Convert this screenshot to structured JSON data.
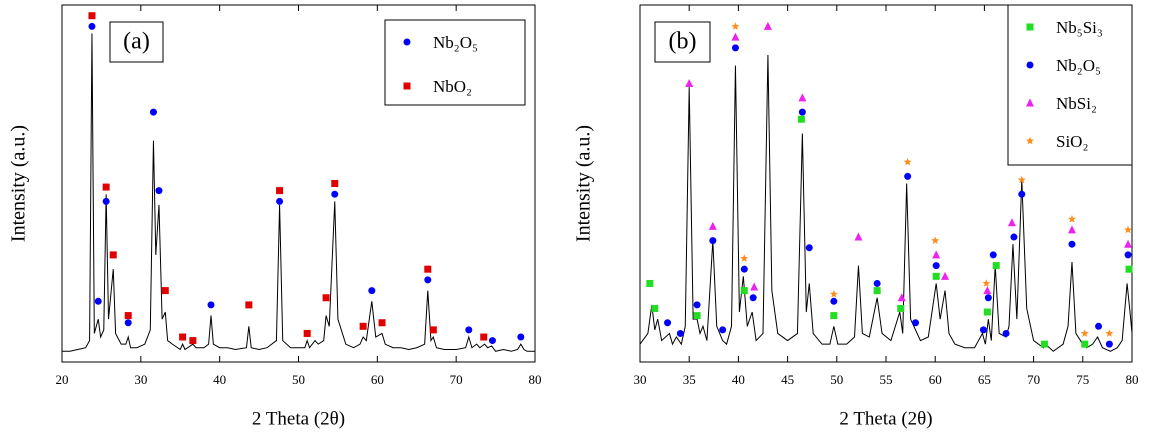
{
  "chart_data": [
    {
      "type": "line",
      "label": "(a)",
      "xlabel": "2 Theta (2θ)",
      "ylabel": "Intensity (a.u.)",
      "xlim": [
        20,
        80
      ],
      "xticks": [
        20,
        30,
        40,
        50,
        60,
        70,
        80
      ],
      "ylim": [
        0,
        100
      ],
      "color": "#000000",
      "legend": "upper right",
      "x": [
        20,
        21,
        22,
        23,
        23.5,
        23.8,
        24.1,
        24.6,
        24.9,
        25.3,
        25.6,
        25.9,
        26.5,
        26.8,
        27.5,
        28.1,
        28.4,
        28.7,
        29.5,
        30.5,
        31.2,
        31.6,
        31.9,
        32.3,
        32.7,
        33.1,
        33.4,
        34,
        35,
        35.3,
        35.6,
        36.6,
        37,
        38,
        38.6,
        38.9,
        39.2,
        40,
        41,
        42,
        43.4,
        43.7,
        44,
        45,
        46,
        47.2,
        47.6,
        48,
        49,
        50,
        50.8,
        51.1,
        51.4,
        52.1,
        52.5,
        53.2,
        53.5,
        53.9,
        54.6,
        55,
        56,
        57,
        57.8,
        58.2,
        58.6,
        59.3,
        59.8,
        60.6,
        61,
        62,
        63,
        64,
        65,
        66,
        66.4,
        66.8,
        67.1,
        67.5,
        68.5,
        70,
        71.2,
        71.6,
        72,
        72.6,
        73,
        73.6,
        74,
        74.5,
        75,
        76,
        77,
        77.8,
        78.2,
        78.6,
        79,
        80
      ],
      "values": [
        3,
        3,
        3.5,
        4,
        6,
        92,
        8,
        12,
        7,
        9,
        47,
        12,
        26,
        8,
        5,
        5,
        7,
        4,
        4,
        5,
        9,
        62,
        30,
        44,
        12,
        14,
        6,
        5,
        3.5,
        5,
        3.5,
        5,
        4,
        4,
        5,
        13,
        5,
        4,
        4,
        3.5,
        4,
        10,
        4,
        3.5,
        4,
        6,
        44,
        6,
        4,
        4,
        4,
        6,
        4,
        6,
        5,
        6,
        13,
        10,
        45,
        12,
        5,
        4,
        5,
        7,
        6,
        17,
        7,
        8,
        5,
        4,
        4,
        3.5,
        4,
        5,
        20,
        6,
        7,
        4,
        3.5,
        3.5,
        4,
        7,
        4,
        5,
        4,
        5,
        4,
        4.5,
        3,
        3.5,
        3,
        3.5,
        5,
        3.5,
        3,
        3
      ],
      "series": [
        {
          "name": "Nb₂O₅",
          "color": "#0000ff",
          "marker": "circle",
          "x": [
            23.8,
            24.6,
            25.6,
            28.4,
            31.6,
            32.3,
            38.9,
            47.6,
            54.6,
            59.3,
            66.4,
            71.6,
            74.6,
            78.2
          ],
          "values": [
            94,
            17,
            45,
            11,
            70,
            48,
            16,
            45,
            47,
            20,
            23,
            9,
            6,
            7
          ]
        },
        {
          "name": "NbO₂",
          "color": "#e00000",
          "marker": "square",
          "x": [
            23.8,
            25.6,
            26.5,
            28.4,
            33.1,
            35.3,
            36.6,
            43.7,
            47.6,
            51.1,
            53.5,
            54.6,
            58.2,
            60.6,
            66.4,
            67.1,
            73.5
          ],
          "values": [
            97,
            49,
            30,
            13,
            20,
            7,
            6,
            16,
            48,
            8,
            18,
            50,
            10,
            11,
            26,
            9,
            7
          ]
        }
      ]
    },
    {
      "type": "line",
      "label": "(b)",
      "xlabel": "2 Theta (2θ)",
      "ylabel": "Intensity (a.u.)",
      "xlim": [
        30,
        80
      ],
      "xticks": [
        30,
        35,
        40,
        45,
        50,
        55,
        60,
        65,
        70,
        75,
        80
      ],
      "ylim": [
        0,
        100
      ],
      "color": "#000000",
      "legend": "upper right",
      "x": [
        30,
        30.8,
        31.2,
        31.5,
        31.8,
        32.2,
        33,
        33.3,
        33.7,
        34.2,
        34.6,
        35,
        35.4,
        35.8,
        36.1,
        36.4,
        36.8,
        37.4,
        37.8,
        38.4,
        38.8,
        39.3,
        39.7,
        40.1,
        40.5,
        40.9,
        41.4,
        41.8,
        42.5,
        43,
        43.4,
        44,
        45,
        46,
        46.5,
        46.9,
        47.2,
        47.6,
        48.5,
        49.3,
        49.7,
        50.1,
        51,
        51.8,
        52.2,
        52.6,
        53.3,
        54.1,
        54.6,
        55.5,
        56.4,
        56.7,
        57.1,
        57.5,
        58,
        58.5,
        59.3,
        60.1,
        60.5,
        61,
        61.4,
        62,
        63,
        64,
        64.8,
        65.1,
        65.4,
        65.7,
        66.1,
        66.5,
        67.2,
        67.5,
        67.9,
        68.3,
        68.8,
        69.3,
        70,
        71,
        71.2,
        72,
        73,
        73.5,
        73.9,
        74.3,
        75,
        75.4,
        76,
        76.5,
        77,
        77.8,
        78.5,
        79,
        79.5,
        79.8,
        80
      ],
      "values": [
        5,
        8,
        16,
        9,
        12,
        6,
        8,
        5,
        7,
        5,
        10,
        77,
        12,
        12,
        8,
        10,
        6,
        34,
        10,
        6,
        5,
        10,
        83,
        14,
        24,
        10,
        14,
        6,
        8,
        86,
        20,
        8,
        6,
        8,
        64,
        14,
        22,
        8,
        5,
        5,
        10,
        5,
        5,
        7,
        27,
        8,
        7,
        18,
        8,
        6,
        14,
        8,
        50,
        12,
        9,
        6,
        7,
        22,
        12,
        20,
        8,
        5,
        4,
        4,
        8,
        5,
        12,
        6,
        27,
        8,
        7,
        10,
        33,
        12,
        51,
        15,
        6,
        4,
        5,
        3,
        5,
        10,
        28,
        8,
        5,
        4,
        5,
        7,
        4,
        3,
        4,
        6,
        22,
        14,
        8
      ],
      "series": [
        {
          "name": "Nb₅Si₃",
          "color": "#22dd22",
          "marker": "square",
          "x": [
            31,
            31.5,
            35.8,
            40.6,
            46.4,
            49.7,
            54.1,
            56.5,
            60.1,
            65.3,
            66.2,
            71.1,
            75.2,
            79.7
          ],
          "values": [
            22,
            15,
            13,
            20,
            68,
            13,
            20,
            15,
            24,
            14,
            27,
            5,
            5,
            26
          ]
        },
        {
          "name": "Nb₂O₅",
          "color": "#0000ff",
          "marker": "circle",
          "x": [
            32.8,
            34.1,
            35.8,
            37.4,
            38.4,
            39.7,
            40.6,
            41.5,
            46.5,
            47.2,
            49.7,
            54.1,
            57.2,
            58,
            60.1,
            64.9,
            65.4,
            65.9,
            67.2,
            68,
            68.8,
            73.9,
            76.6,
            77.7,
            79.6
          ],
          "values": [
            11,
            8,
            16,
            34,
            9,
            88,
            26,
            18,
            70,
            32,
            17,
            22,
            52,
            11,
            27,
            9,
            18,
            30,
            8,
            35,
            47,
            33,
            10,
            5,
            30
          ]
        },
        {
          "name": "NbSi₂",
          "color": "#ee22ee",
          "marker": "triangle",
          "x": [
            35,
            37.4,
            39.7,
            41.6,
            43,
            46.5,
            52.2,
            56.6,
            60.1,
            61,
            65.3,
            67.8,
            73.9,
            79.6
          ],
          "values": [
            78,
            38,
            91,
            21,
            94,
            74,
            35,
            18,
            30,
            24,
            20,
            39,
            37,
            33
          ]
        },
        {
          "name": "SiO₂",
          "color": "#ff8c1a",
          "marker": "star",
          "x": [
            39.7,
            40.6,
            49.7,
            57.2,
            60,
            65.2,
            68.8,
            73.9,
            75.2,
            77.7,
            79.6
          ],
          "values": [
            94,
            29,
            19,
            56,
            34,
            22,
            51,
            40,
            8,
            8,
            37
          ]
        }
      ]
    }
  ]
}
